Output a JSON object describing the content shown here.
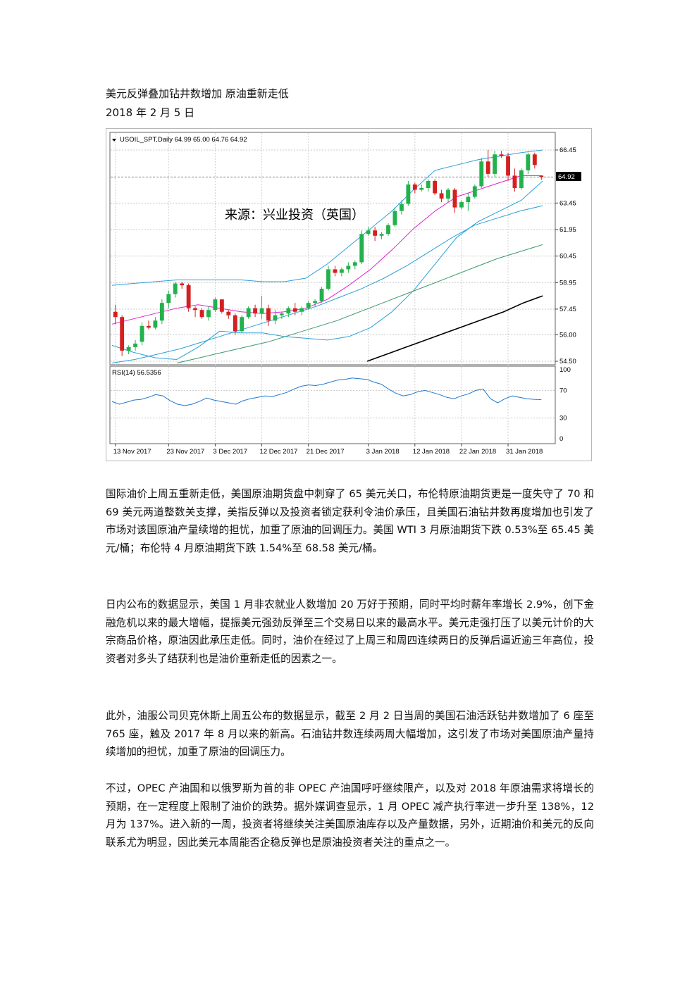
{
  "header": {
    "title": "美元反弹叠加钻井数增加  原油重新走低",
    "date": "2018 年 2 月 5 日"
  },
  "chart": {
    "symbol_info": "USOIL_SPT,Daily  64.99 65.00 64.76 64.92",
    "watermark": "来源：兴业投资（英国）",
    "price_ticks": [
      "66.45",
      "63.45",
      "61.95",
      "60.45",
      "58.95",
      "57.45",
      "56.00",
      "54.50"
    ],
    "current_price": "64.92",
    "rsi_label": "RSI(14) 56.5356",
    "rsi_ticks": [
      "100",
      "70",
      "30",
      "0"
    ],
    "date_ticks": [
      "13 Nov 2017",
      "23 Nov 2017",
      "3 Dec 2017",
      "12 Dec 2017",
      "21 Dec 2017",
      "3 Jan 2018",
      "12 Jan 2018",
      "22 Jan 2018",
      "31 Jan 2018"
    ],
    "colors": {
      "up_candle": "#22b14c",
      "down_candle": "#d42020",
      "bollinger": "#2aa0d8",
      "ma_fast": "#e020d0",
      "ma_mid": "#2aa0d8",
      "ma_slow": "#3a9a6a",
      "ma_long": "#000000",
      "rsi_line": "#1e78d0"
    }
  },
  "chart_data": [
    {
      "type": "candlestick",
      "series_label": "USOIL_SPT,Daily",
      "ohlc_latest": {
        "open": 64.99,
        "high": 65.0,
        "low": 64.76,
        "close": 64.92
      },
      "ylim": [
        54.5,
        66.45
      ],
      "x_ticks": [
        "13 Nov 2017",
        "23 Nov 2017",
        "3 Dec 2017",
        "12 Dec 2017",
        "21 Dec 2017",
        "3 Jan 2018",
        "12 Jan 2018",
        "22 Jan 2018",
        "31 Jan 2018"
      ],
      "y_ticks": [
        66.45,
        63.45,
        61.95,
        60.45,
        58.95,
        57.45,
        56.0,
        54.5
      ],
      "candles": [
        [
          57.3,
          57.7,
          56.6,
          57.0
        ],
        [
          57.0,
          57.1,
          54.8,
          55.1
        ],
        [
          55.1,
          55.4,
          54.9,
          55.3
        ],
        [
          55.3,
          55.7,
          55.1,
          55.5
        ],
        [
          55.6,
          56.7,
          55.4,
          56.5
        ],
        [
          56.5,
          56.8,
          56.3,
          56.4
        ],
        [
          56.4,
          57.0,
          56.3,
          56.8
        ],
        [
          56.8,
          58.0,
          56.6,
          57.8
        ],
        [
          57.8,
          58.5,
          57.5,
          58.3
        ],
        [
          58.3,
          59.0,
          58.1,
          58.9
        ],
        [
          58.9,
          59.0,
          58.6,
          58.8
        ],
        [
          58.8,
          58.9,
          57.3,
          57.5
        ],
        [
          57.5,
          57.6,
          57.0,
          57.4
        ],
        [
          57.4,
          57.5,
          56.9,
          57.0
        ],
        [
          57.0,
          57.6,
          56.8,
          57.4
        ],
        [
          57.4,
          58.1,
          57.3,
          58.0
        ],
        [
          58.0,
          58.0,
          57.2,
          57.3
        ],
        [
          57.3,
          57.4,
          56.9,
          57.1
        ],
        [
          57.1,
          57.2,
          56.0,
          56.2
        ],
        [
          56.2,
          57.1,
          56.1,
          57.0
        ],
        [
          57.0,
          57.6,
          56.9,
          57.5
        ],
        [
          57.5,
          57.7,
          57.0,
          57.2
        ],
        [
          57.2,
          58.2,
          56.9,
          57.5
        ],
        [
          57.5,
          57.7,
          56.5,
          56.8
        ],
        [
          56.8,
          57.4,
          56.6,
          57.1
        ],
        [
          57.1,
          57.3,
          56.9,
          57.2
        ],
        [
          57.2,
          57.6,
          57.0,
          57.5
        ],
        [
          57.5,
          57.8,
          57.1,
          57.3
        ],
        [
          57.3,
          57.6,
          57.1,
          57.5
        ],
        [
          57.5,
          57.9,
          57.4,
          57.8
        ],
        [
          57.8,
          58.0,
          57.6,
          57.9
        ],
        [
          57.9,
          58.7,
          57.8,
          58.6
        ],
        [
          58.6,
          59.9,
          58.5,
          59.7
        ],
        [
          59.7,
          59.9,
          59.3,
          59.5
        ],
        [
          59.5,
          59.8,
          59.3,
          59.7
        ],
        [
          59.7,
          60.1,
          59.5,
          59.9
        ],
        [
          59.9,
          60.2,
          59.7,
          60.1
        ],
        [
          60.1,
          61.9,
          60.0,
          61.7
        ],
        [
          61.7,
          62.1,
          61.6,
          61.9
        ],
        [
          61.9,
          62.1,
          61.3,
          61.6
        ],
        [
          61.6,
          61.8,
          61.4,
          61.7
        ],
        [
          61.7,
          62.3,
          61.6,
          62.2
        ],
        [
          62.2,
          63.2,
          62.1,
          63.0
        ],
        [
          63.0,
          63.6,
          62.8,
          63.4
        ],
        [
          63.4,
          64.7,
          63.3,
          64.5
        ],
        [
          64.5,
          64.6,
          64.0,
          64.2
        ],
        [
          64.2,
          64.5,
          64.1,
          64.3
        ],
        [
          64.3,
          64.8,
          64.1,
          64.7
        ],
        [
          64.7,
          64.8,
          63.9,
          64.0
        ],
        [
          64.0,
          64.2,
          63.5,
          63.7
        ],
        [
          63.7,
          64.3,
          63.5,
          64.2
        ],
        [
          64.2,
          64.3,
          62.9,
          63.2
        ],
        [
          63.2,
          63.6,
          63.1,
          63.5
        ],
        [
          63.5,
          64.0,
          63.0,
          63.8
        ],
        [
          63.8,
          64.5,
          63.7,
          64.4
        ],
        [
          64.4,
          66.0,
          64.3,
          65.8
        ],
        [
          65.8,
          66.6,
          64.9,
          65.1
        ],
        [
          65.1,
          66.4,
          64.9,
          66.2
        ],
        [
          66.2,
          66.4,
          66.0,
          66.1
        ],
        [
          66.1,
          66.3,
          64.7,
          65.0
        ],
        [
          65.0,
          65.4,
          64.1,
          64.3
        ],
        [
          64.3,
          65.4,
          64.2,
          65.3
        ],
        [
          65.3,
          66.3,
          65.1,
          66.2
        ],
        [
          66.2,
          66.3,
          65.4,
          65.6
        ],
        [
          64.99,
          65.0,
          64.76,
          64.92
        ]
      ],
      "indicators": {
        "bollinger_upper": [
          58.8,
          58.9,
          59.0,
          59.1,
          59.1,
          59.1,
          59.1,
          59.0,
          59.0,
          59.2,
          60.0,
          61.0,
          62.0,
          63.0,
          64.2,
          65.3,
          65.6,
          65.9,
          66.1,
          66.3,
          66.45
        ],
        "ma_fast": [
          56.6,
          56.9,
          57.2,
          57.5,
          57.7,
          57.5,
          57.3,
          57.2,
          57.3,
          57.5,
          58.0,
          58.8,
          59.7,
          60.8,
          62.0,
          63.0,
          63.8,
          64.2,
          64.6,
          65.0,
          65.0
        ],
        "bollinger_lower": [
          55.4,
          55.0,
          54.7,
          54.6,
          55.3,
          56.2,
          56.1,
          56.1,
          55.9,
          55.8,
          55.7,
          55.9,
          56.4,
          57.3,
          58.5,
          60.0,
          61.5,
          62.4,
          63.0,
          63.6,
          64.7
        ],
        "ma_mid": [
          54.4,
          54.6,
          54.9,
          55.2,
          55.6,
          56.0,
          56.4,
          56.8,
          57.2,
          57.6,
          58.1,
          58.6,
          59.2,
          59.9,
          60.7,
          61.5,
          62.2,
          62.6,
          63.0,
          63.3
        ],
        "ma_slow": [
          54.4,
          54.7,
          55.0,
          55.3,
          55.6,
          56.0,
          56.4,
          56.8,
          57.3,
          57.8,
          58.3,
          58.8,
          59.3,
          59.8,
          60.3,
          60.7,
          61.1
        ],
        "ma_long": [
          54.5,
          54.9,
          55.3,
          55.7,
          56.1,
          56.5,
          56.9,
          57.3,
          57.8,
          58.2
        ]
      }
    },
    {
      "type": "line",
      "series_label": "RSI(14) 56.5356",
      "ylim": [
        0,
        100
      ],
      "y_ticks": [
        100,
        70,
        30,
        0
      ],
      "values": [
        54,
        50,
        53,
        56,
        57,
        60,
        64,
        62,
        55,
        50,
        48,
        50,
        54,
        59,
        56,
        54,
        52,
        50,
        55,
        58,
        60,
        62,
        61,
        64,
        67,
        72,
        76,
        78,
        77,
        79,
        82,
        85,
        86,
        88,
        87,
        86,
        82,
        79,
        72,
        66,
        62,
        64,
        68,
        70,
        67,
        64,
        60,
        58,
        62,
        65,
        70,
        72,
        58,
        52,
        58,
        62,
        60,
        58,
        57,
        56.5
      ]
    }
  ],
  "article": {
    "paragraphs": [
      "国际油价上周五重新走低，美国原油期货盘中刺穿了 65 美元关口，布伦特原油期货更是一度失守了 70 和 69 美元两道整数关支撑，美指反弹以及投资者锁定获利令油价承压，且美国石油钻井数再度增加也引发了市场对该国原油产量续增的担忧，加重了原油的回调压力。美国 WTI 3 月原油期货下跌 0.53%至 65.45 美元/桶；布伦特 4 月原油期货下跌 1.54%至 68.58 美元/桶。",
      "日内公布的数据显示，美国 1 月非农就业人数增加 20 万好于预期，同时平均时薪年率增长 2.9%，创下金融危机以来的最大增幅，提振美元强劲反弹至三个交易日以来的最高水平。美元走强打压了以美元计价的大宗商品价格，原油因此承压走低。同时，油价在经过了上周三和周四连续两日的反弹后逼近逾三年高位，投资者对多头了结获利也是油价重新走低的因素之一。",
      "此外，油服公司贝克休斯上周五公布的数据显示，截至 2 月 2 日当周的美国石油活跃钻井数增加了 6 座至 765 座，触及 2017 年 8 月以来的新高。石油钻井数连续两周大幅增加，这引发了市场对美国原油产量持续增加的担忧，加重了原油的回调压力。",
      "不过，OPEC 产油国和以俄罗斯为首的非 OPEC 产油国呼吁继续限产，以及对 2018 年原油需求将增长的预期，在一定程度上限制了油价的跌势。据外媒调查显示，1 月 OPEC 减产执行率进一步升至 138%，12 月为 137%。进入新的一周，投资者将继续关注美国原油库存以及产量数据，另外，近期油价和美元的反向联系尤为明显，因此美元本周能否企稳反弹也是原油投资者关注的重点之一。"
    ]
  }
}
